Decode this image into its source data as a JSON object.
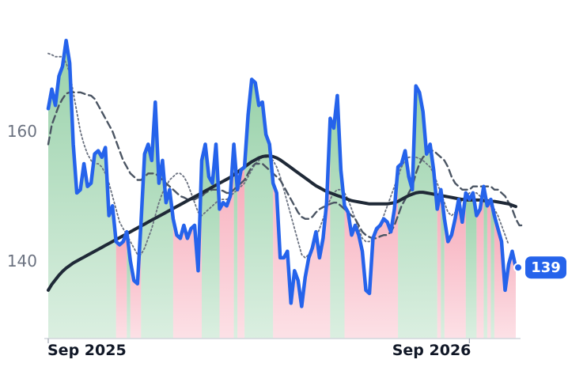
{
  "chart_data": {
    "type": "line",
    "title": "",
    "xlabel": "",
    "ylabel": "",
    "x_tick_labels": [
      {
        "label": "Sep 2025",
        "index": 0
      },
      {
        "label": "Sep 2026",
        "index": 118
      }
    ],
    "y_ticks": [
      140,
      160
    ],
    "ylim": [
      128,
      174
    ],
    "grid": false,
    "last_value_label": "139",
    "colors": {
      "price": "#2563eb",
      "moving_average_long": "#1f2937",
      "moving_average_medium": "#4b5563",
      "moving_average_short": "#6b7280",
      "up_fill": "#86c99a",
      "down_fill": "#f59aac",
      "badge": "#2563eb"
    },
    "series": [
      {
        "role": "price",
        "values": [
          163.5,
          166.5,
          164.0,
          168.5,
          170.0,
          174.0,
          170.5,
          158.0,
          150.5,
          151.0,
          155.0,
          151.5,
          152.0,
          156.5,
          157.0,
          156.0,
          157.5,
          147.0,
          148.5,
          143.0,
          142.5,
          143.0,
          144.5,
          140.0,
          137.0,
          136.5,
          146.0,
          156.5,
          158.0,
          155.5,
          164.5,
          152.0,
          155.5,
          149.0,
          151.0,
          146.5,
          144.0,
          143.5,
          145.5,
          143.5,
          145.0,
          145.5,
          138.5,
          155.5,
          158.0,
          153.0,
          152.0,
          158.0,
          148.0,
          149.0,
          148.5,
          150.0,
          158.0,
          151.0,
          154.0,
          154.5,
          162.5,
          168.0,
          167.5,
          164.0,
          164.5,
          159.5,
          158.0,
          152.0,
          150.5,
          140.5,
          140.5,
          141.5,
          133.5,
          138.5,
          137.0,
          133.0,
          137.5,
          140.5,
          142.0,
          144.5,
          140.5,
          143.5,
          149.0,
          162.0,
          160.5,
          165.5,
          154.0,
          148.5,
          147.5,
          144.0,
          145.5,
          144.0,
          141.5,
          135.5,
          135.0,
          143.5,
          145.0,
          145.5,
          146.5,
          146.0,
          144.5,
          148.0,
          154.5,
          155.0,
          157.0,
          153.0,
          151.0,
          167.0,
          166.0,
          163.0,
          156.5,
          158.0,
          154.0,
          148.0,
          151.0,
          146.5,
          143.0,
          144.0,
          146.5,
          149.5,
          146.0,
          150.5,
          149.5,
          150.5,
          147.0,
          148.0,
          151.5,
          148.5,
          149.5,
          147.0,
          145.0,
          143.0,
          135.5,
          139.5,
          141.5,
          139.0
        ]
      },
      {
        "role": "moving_average_long",
        "values": [
          135.5,
          136.4,
          137.1,
          137.8,
          138.4,
          138.9,
          139.3,
          139.7,
          140.0,
          140.3,
          140.6,
          140.9,
          141.2,
          141.5,
          141.8,
          142.1,
          142.4,
          142.7,
          143.0,
          143.3,
          143.6,
          143.9,
          144.2,
          144.5,
          144.8,
          145.1,
          145.4,
          145.7,
          146.0,
          146.3,
          146.6,
          146.9,
          147.2,
          147.5,
          147.8,
          148.1,
          148.4,
          148.7,
          149.0,
          149.3,
          149.6,
          149.9,
          150.2,
          150.5,
          150.8,
          151.1,
          151.4,
          151.7,
          152.0,
          152.3,
          152.6,
          152.9,
          153.3,
          153.7,
          154.1,
          154.5,
          154.9,
          155.3,
          155.6,
          155.9,
          156.1,
          156.2,
          156.2,
          156.1,
          155.9,
          155.6,
          155.2,
          154.8,
          154.4,
          154.0,
          153.6,
          153.2,
          152.8,
          152.4,
          152.0,
          151.6,
          151.3,
          151.0,
          150.7,
          150.5,
          150.3,
          150.1,
          149.9,
          149.7,
          149.5,
          149.3,
          149.2,
          149.1,
          149.0,
          148.9,
          148.8,
          148.8,
          148.8,
          148.8,
          148.8,
          148.8,
          148.9,
          149.0,
          149.2,
          149.5,
          149.8,
          150.1,
          150.3,
          150.5,
          150.6,
          150.6,
          150.5,
          150.4,
          150.3,
          150.2,
          150.1,
          150.0,
          149.9,
          149.8,
          149.7,
          149.6,
          149.5,
          149.4,
          149.4,
          149.4,
          149.4,
          149.4,
          149.3,
          149.3,
          149.2,
          149.2,
          149.1,
          149.0,
          148.9,
          148.8,
          148.6,
          148.4
        ]
      },
      {
        "role": "moving_average_medium",
        "values": [
          158.0,
          161.0,
          162.5,
          164.0,
          165.0,
          165.8,
          166.0,
          166.0,
          166.0,
          166.0,
          165.8,
          165.6,
          165.5,
          165.0,
          164.0,
          163.0,
          162.0,
          161.0,
          160.0,
          158.5,
          157.0,
          155.5,
          154.5,
          153.5,
          153.0,
          152.5,
          152.5,
          153.0,
          153.5,
          153.5,
          153.5,
          153.0,
          152.5,
          152.0,
          151.5,
          151.0,
          150.5,
          150.0,
          149.8,
          149.5,
          149.5,
          149.5,
          149.8,
          150.0,
          150.5,
          150.8,
          151.0,
          151.0,
          151.0,
          150.8,
          150.5,
          150.5,
          151.0,
          151.5,
          152.0,
          152.5,
          153.5,
          154.5,
          155.0,
          155.0,
          155.0,
          154.5,
          154.0,
          153.5,
          153.0,
          152.5,
          151.5,
          150.5,
          149.5,
          148.5,
          147.5,
          146.8,
          146.5,
          146.5,
          146.8,
          147.5,
          148.0,
          148.3,
          148.5,
          148.8,
          149.0,
          149.0,
          148.5,
          148.0,
          147.5,
          147.0,
          146.5,
          145.5,
          144.5,
          144.0,
          143.7,
          143.5,
          143.5,
          143.8,
          144.0,
          144.0,
          144.5,
          145.5,
          147.0,
          148.5,
          149.5,
          150.5,
          151.5,
          153.5,
          155.0,
          156.0,
          156.5,
          157.0,
          157.0,
          156.5,
          156.0,
          155.5,
          154.5,
          153.0,
          152.0,
          151.5,
          151.0,
          151.0,
          151.0,
          151.5,
          151.5,
          151.5,
          151.5,
          151.5,
          151.5,
          151.0,
          151.0,
          150.5,
          150.0,
          149.0,
          148.0,
          146.5,
          145.5,
          145.5
        ]
      },
      {
        "role": "moving_average_short",
        "values": [
          172.0,
          171.8,
          171.5,
          171.5,
          171.5,
          170.5,
          169.0,
          166.0,
          163.0,
          160.0,
          158.0,
          156.5,
          155.5,
          155.0,
          155.0,
          154.5,
          153.5,
          152.0,
          150.0,
          148.0,
          146.0,
          145.0,
          144.0,
          143.0,
          142.0,
          141.0,
          141.0,
          142.0,
          143.5,
          145.0,
          147.0,
          149.0,
          150.5,
          151.5,
          152.5,
          153.0,
          153.5,
          153.5,
          153.0,
          152.0,
          150.5,
          149.0,
          147.5,
          147.0,
          147.5,
          148.0,
          148.5,
          149.0,
          149.5,
          149.5,
          149.5,
          150.0,
          150.5,
          151.0,
          151.5,
          152.0,
          153.0,
          154.0,
          155.0,
          155.5,
          156.0,
          156.0,
          156.0,
          155.5,
          154.5,
          153.0,
          151.0,
          149.0,
          147.0,
          145.0,
          143.0,
          141.0,
          140.5,
          141.0,
          142.0,
          143.5,
          145.0,
          146.5,
          148.0,
          149.5,
          150.5,
          151.0,
          151.0,
          150.5,
          149.5,
          148.0,
          146.5,
          145.0,
          143.5,
          143.0,
          143.0,
          143.5,
          144.5,
          145.5,
          147.0,
          148.5,
          150.0,
          151.5,
          153.0,
          154.5,
          155.5,
          156.0,
          156.0,
          156.0,
          155.8,
          155.5,
          155.0,
          154.5,
          153.5,
          152.0,
          150.5,
          149.0,
          147.5,
          147.0,
          147.5,
          148.5,
          149.5,
          150.0,
          150.5,
          150.5,
          150.5,
          150.0,
          149.5,
          149.0,
          148.5,
          148.0,
          147.0,
          145.5,
          144.0,
          142.5
        ]
      }
    ]
  }
}
